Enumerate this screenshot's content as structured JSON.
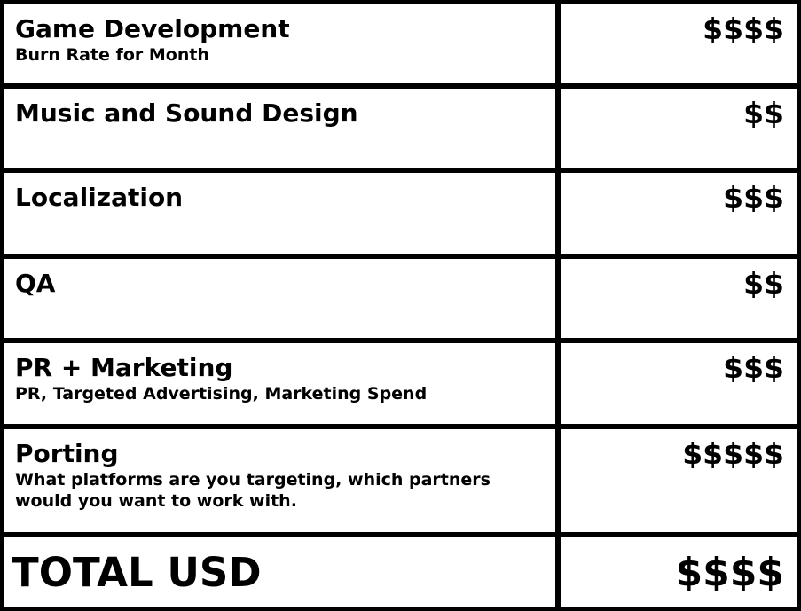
{
  "table": {
    "rows": [
      {
        "title": "Game Development",
        "subtitle": "Burn Rate for Month",
        "cost": "$$$$"
      },
      {
        "title": "Music and Sound Design",
        "subtitle": "",
        "cost": "$$"
      },
      {
        "title": "Localization",
        "subtitle": "",
        "cost": "$$$"
      },
      {
        "title": "QA",
        "subtitle": "",
        "cost": "$$"
      },
      {
        "title": "PR + Marketing",
        "subtitle": "PR, Targeted Advertising, Marketing Spend",
        "cost": "$$$"
      },
      {
        "title": "Porting",
        "subtitle": "What platforms are you targeting, which partners would you want to work with.",
        "cost": "$$$$$"
      }
    ],
    "total": {
      "label": "TOTAL USD",
      "cost": "$$$$"
    },
    "colors": {
      "border": "#000000",
      "cell_background": "#ffffff",
      "text": "#000000"
    }
  }
}
